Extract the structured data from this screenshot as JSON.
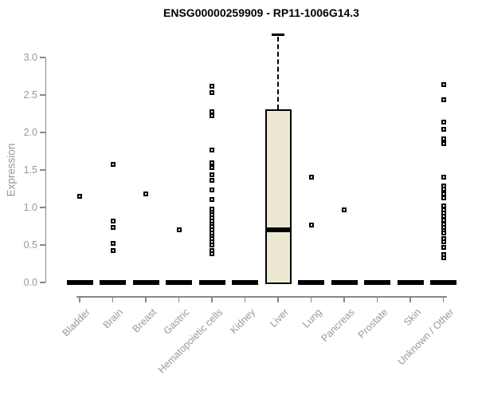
{
  "chart_data": {
    "type": "boxplot",
    "title": "ENSG00000259909 - RP11-1006G14.3",
    "ylabel": "Expression",
    "xlabel": "",
    "yticks": [
      0.0,
      0.5,
      1.0,
      1.5,
      2.0,
      2.5,
      3.0
    ],
    "ylim": [
      -0.2,
      3.4
    ],
    "grid": false,
    "legend_position": "none",
    "categories": [
      "Bladder",
      "Brain",
      "Breast",
      "Gastric",
      "Hematopoietic cells",
      "Kidney",
      "Liver",
      "Lung",
      "Pancreas",
      "Prostate",
      "Skin",
      "Unknown / Other"
    ],
    "series": [
      {
        "category": "Bladder",
        "zero_bar": true,
        "points": [
          1.15
        ]
      },
      {
        "category": "Brain",
        "zero_bar": true,
        "points": [
          1.57,
          0.82,
          0.73,
          0.52,
          0.43
        ]
      },
      {
        "category": "Breast",
        "zero_bar": true,
        "points": [
          1.18
        ]
      },
      {
        "category": "Gastric",
        "zero_bar": true,
        "points": [
          0.7
        ]
      },
      {
        "category": "Hematopoietic cells",
        "zero_bar": true,
        "points": [
          2.62,
          2.53,
          2.28,
          2.22,
          1.77,
          1.6,
          1.53,
          1.44,
          1.36,
          1.23,
          1.11,
          0.98,
          0.94,
          0.9,
          0.86,
          0.82,
          0.78,
          0.74,
          0.7,
          0.66,
          0.62,
          0.58,
          0.54,
          0.5,
          0.43,
          0.38
        ]
      },
      {
        "category": "Kidney",
        "zero_bar": true,
        "points": []
      },
      {
        "category": "Liver",
        "zero_bar": false,
        "points": [],
        "box": {
          "lower_whisker": 0.0,
          "q1": 0.0,
          "median": 0.7,
          "q3": 2.31,
          "upper_whisker": 3.3
        }
      },
      {
        "category": "Lung",
        "zero_bar": true,
        "points": [
          1.4,
          0.77
        ]
      },
      {
        "category": "Pancreas",
        "zero_bar": true,
        "points": [
          0.97
        ]
      },
      {
        "category": "Prostate",
        "zero_bar": true,
        "points": []
      },
      {
        "category": "Skin",
        "zero_bar": true,
        "points": []
      },
      {
        "category": "Unknown / Other",
        "zero_bar": true,
        "points": [
          2.64,
          2.44,
          2.14,
          2.04,
          1.91,
          1.85,
          1.4,
          1.29,
          1.24,
          1.18,
          1.13,
          1.02,
          0.97,
          0.93,
          0.88,
          0.83,
          0.78,
          0.73,
          0.69,
          0.66,
          0.59,
          0.54,
          0.47,
          0.37,
          0.33
        ]
      }
    ],
    "colors": {
      "box_fill": "#ede8d1",
      "box_border": "#000000",
      "marker": "#000000",
      "zero_bar": "#000000",
      "axis_line": "#85898d",
      "axis_text": "#94999f",
      "title_text": "#000000"
    }
  }
}
